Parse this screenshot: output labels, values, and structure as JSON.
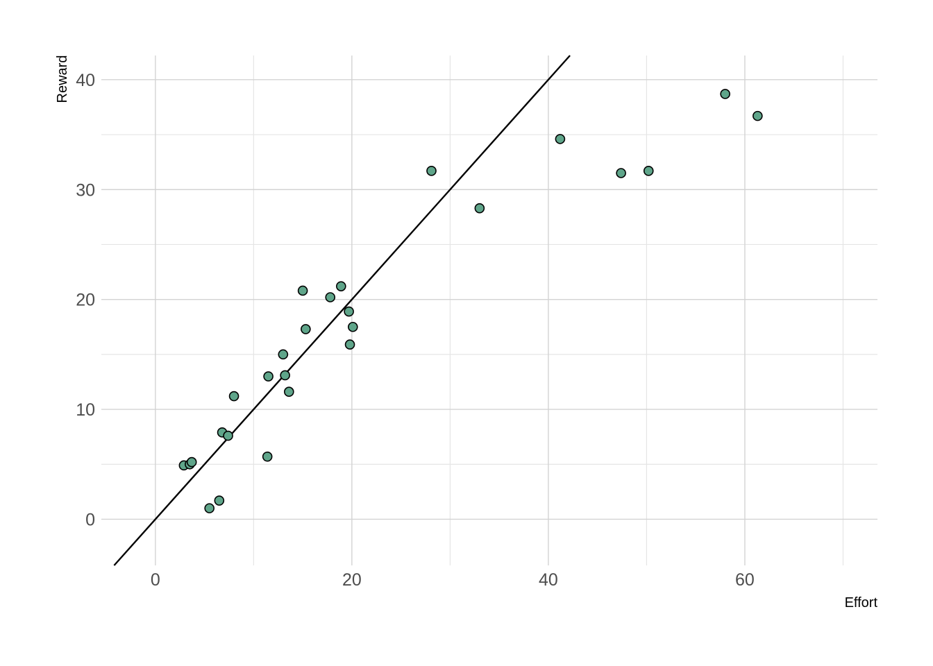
{
  "chart_data": {
    "type": "scatter",
    "title": "",
    "xlabel": "Effort",
    "ylabel": "Reward",
    "xlim": [
      -5.5,
      73.5
    ],
    "ylim": [
      -4.2,
      42.2
    ],
    "x_ticks": [
      0,
      20,
      40,
      60
    ],
    "y_ticks": [
      0,
      10,
      20,
      30,
      40
    ],
    "x_tick_labels": [
      "0",
      "20",
      "40",
      "60"
    ],
    "y_tick_labels": [
      "0",
      "10",
      "20",
      "30",
      "40"
    ],
    "x_minor_gridlines": [
      10,
      30,
      50,
      70
    ],
    "y_minor_gridlines": [
      5,
      15,
      25,
      35
    ],
    "grid": true,
    "reference_line": {
      "type": "identity",
      "slope": 1,
      "intercept": 0
    },
    "colors": {
      "point_fill": "#5fa58a",
      "point_stroke": "#000000",
      "line": "#000000",
      "grid_major": "#d3d3d3",
      "grid_minor": "#e5e5e5"
    },
    "points": [
      {
        "x": 2.9,
        "y": 4.9
      },
      {
        "x": 3.5,
        "y": 5.0
      },
      {
        "x": 3.7,
        "y": 5.2
      },
      {
        "x": 5.5,
        "y": 1.0
      },
      {
        "x": 6.5,
        "y": 1.7
      },
      {
        "x": 6.8,
        "y": 7.9
      },
      {
        "x": 7.4,
        "y": 7.6
      },
      {
        "x": 8.0,
        "y": 11.2
      },
      {
        "x": 11.4,
        "y": 5.7
      },
      {
        "x": 11.5,
        "y": 13.0
      },
      {
        "x": 13.0,
        "y": 15.0
      },
      {
        "x": 13.2,
        "y": 13.1
      },
      {
        "x": 13.6,
        "y": 11.6
      },
      {
        "x": 15.0,
        "y": 20.8
      },
      {
        "x": 15.3,
        "y": 17.3
      },
      {
        "x": 17.8,
        "y": 20.2
      },
      {
        "x": 18.9,
        "y": 21.2
      },
      {
        "x": 19.7,
        "y": 18.9
      },
      {
        "x": 19.8,
        "y": 15.9
      },
      {
        "x": 20.1,
        "y": 17.5
      },
      {
        "x": 28.1,
        "y": 31.7
      },
      {
        "x": 33.0,
        "y": 28.3
      },
      {
        "x": 41.2,
        "y": 34.6
      },
      {
        "x": 47.4,
        "y": 31.5
      },
      {
        "x": 50.2,
        "y": 31.7
      },
      {
        "x": 58.0,
        "y": 38.7
      },
      {
        "x": 61.3,
        "y": 36.7
      }
    ]
  }
}
